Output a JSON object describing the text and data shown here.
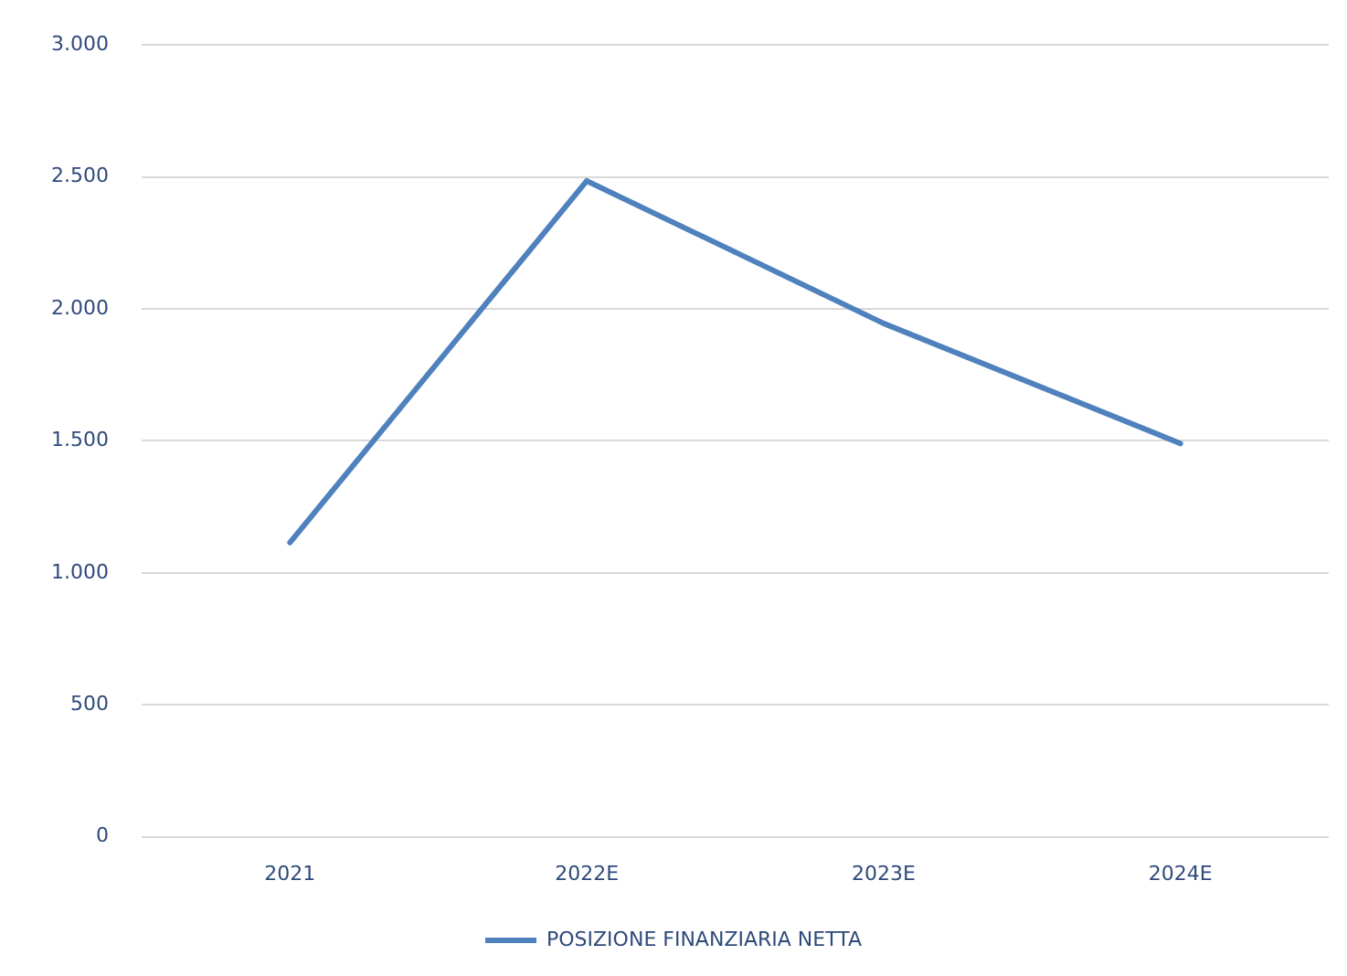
{
  "chart_data": {
    "type": "line",
    "categories": [
      "2021",
      "2022E",
      "2023E",
      "2024E"
    ],
    "series": [
      {
        "name": "POSIZIONE FINANZIARIA NETTA",
        "color": "#4f81bd",
        "values": [
          1115,
          2485,
          1945,
          1490
        ]
      }
    ],
    "ylim": [
      0,
      3000
    ],
    "yticks": [
      0,
      500,
      {
        "value": 1000,
        "label": "1.000"
      },
      {
        "value": 1500,
        "label": "1.500"
      },
      {
        "value": 2000,
        "label": "2.000"
      },
      {
        "value": 2500,
        "label": "2.500"
      },
      {
        "value": 3000,
        "label": "3.000"
      }
    ],
    "grid": "y",
    "legend": "bottom",
    "marker": "none",
    "line_style": "solid"
  }
}
